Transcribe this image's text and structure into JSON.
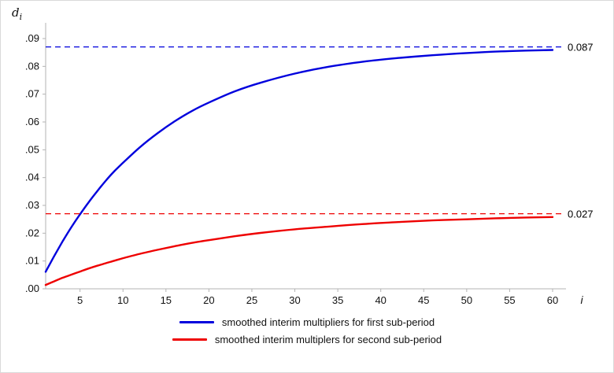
{
  "labels": {
    "y_main": "d",
    "y_sub": "i",
    "x": "i"
  },
  "chart_data": {
    "type": "line",
    "title": "",
    "xlabel": "i",
    "ylabel": "d_i",
    "xlim": [
      1,
      60
    ],
    "ylim": [
      0,
      0.09
    ],
    "grid": false,
    "legend_position": "bottom",
    "x_ticks": [
      5,
      10,
      15,
      20,
      25,
      30,
      35,
      40,
      45,
      50,
      55,
      60
    ],
    "y_tick_values": [
      0,
      0.01,
      0.02,
      0.03,
      0.04,
      0.05,
      0.06,
      0.07,
      0.08,
      0.09
    ],
    "y_tick_labels": [
      ".00",
      ".01",
      ".02",
      ".03",
      ".04",
      ".05",
      ".06",
      ".07",
      ".08",
      ".09"
    ],
    "axis_color": "#b3b3b3",
    "text_color": "#111111",
    "series": [
      {
        "name": "smoothed interim multipliers for first sub-period",
        "color": "#0000dd",
        "asymptote": 0.087,
        "asymptote_label": "0.087",
        "x": [
          1,
          2,
          3,
          4,
          5,
          6,
          7,
          8,
          9,
          10,
          12,
          14,
          16,
          18,
          20,
          23,
          26,
          30,
          34,
          38,
          42,
          46,
          50,
          55,
          60
        ],
        "y": [
          0.0061,
          0.0118,
          0.0172,
          0.0222,
          0.0268,
          0.0311,
          0.0351,
          0.0389,
          0.0423,
          0.0453,
          0.051,
          0.0559,
          0.0602,
          0.0639,
          0.067,
          0.071,
          0.0741,
          0.0774,
          0.0799,
          0.0817,
          0.083,
          0.084,
          0.0848,
          0.0855,
          0.0859
        ]
      },
      {
        "name": "smoothed interim multiplers for second sub-period",
        "color": "#ee0000",
        "asymptote": 0.027,
        "asymptote_label": "0.027",
        "x": [
          1,
          2,
          3,
          4,
          5,
          6,
          7,
          8,
          9,
          10,
          12,
          14,
          16,
          18,
          20,
          23,
          26,
          30,
          34,
          38,
          42,
          46,
          50,
          55,
          60
        ],
        "y": [
          0.0014,
          0.0027,
          0.004,
          0.0051,
          0.0062,
          0.0073,
          0.0083,
          0.0092,
          0.0101,
          0.011,
          0.0126,
          0.014,
          0.0153,
          0.0165,
          0.0175,
          0.0189,
          0.0201,
          0.0214,
          0.0224,
          0.0233,
          0.024,
          0.0246,
          0.025,
          0.0255,
          0.0258
        ]
      }
    ]
  }
}
